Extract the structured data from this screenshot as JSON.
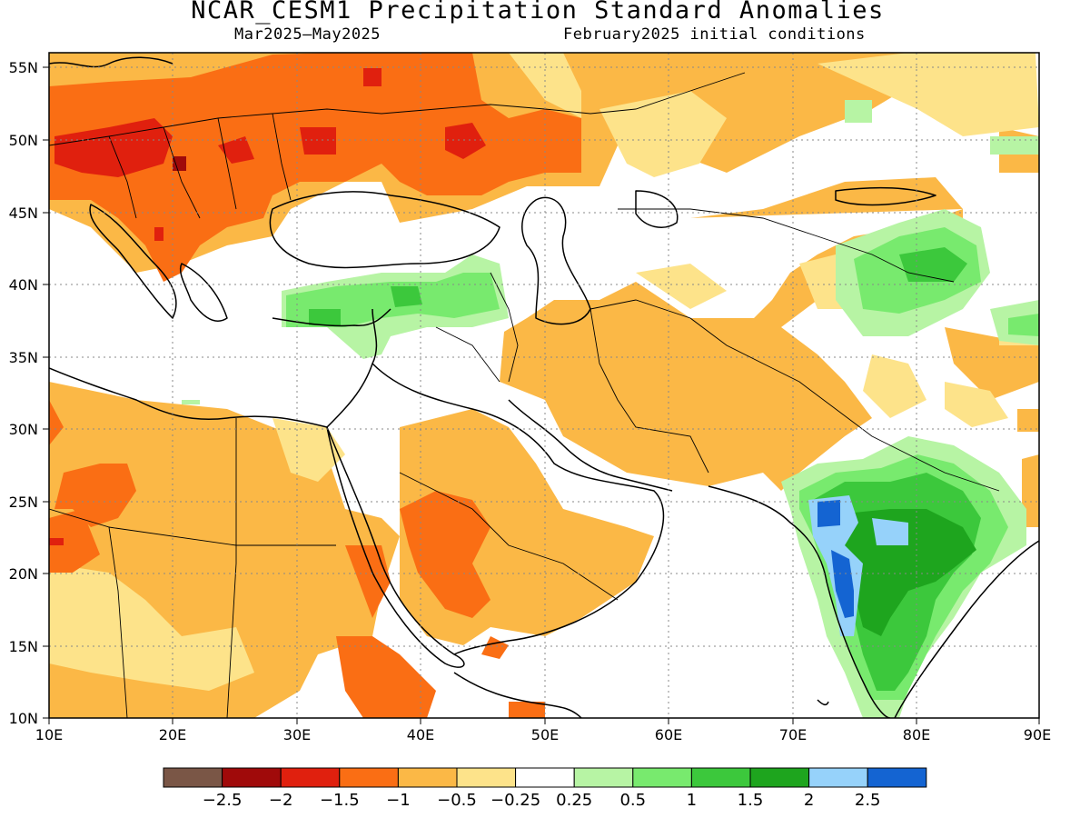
{
  "title": "NCAR_CESM1 Precipitation Standard Anomalies",
  "subtitle_left": "Mar2025–May2025",
  "subtitle_right": "February2025 initial conditions",
  "map": {
    "lon_range": [
      10,
      90
    ],
    "lat_range": [
      10,
      56
    ],
    "lon_ticks": [
      "10E",
      "20E",
      "30E",
      "40E",
      "50E",
      "60E",
      "70E",
      "80E",
      "90E"
    ],
    "lat_ticks": [
      "55N",
      "50N",
      "45N",
      "40N",
      "35N",
      "30N",
      "25N",
      "20N",
      "15N",
      "10N"
    ],
    "grid": true
  },
  "legend": {
    "colors": [
      "#7a5646",
      "#a00a0a",
      "#e0200e",
      "#fa6e14",
      "#fbb846",
      "#fde38a",
      "#ffffff",
      "#b7f4a4",
      "#78ea6e",
      "#3cc83c",
      "#1ea51e",
      "#96d2fa",
      "#1464d2"
    ],
    "labels": [
      "−2.5",
      "−2",
      "−1.5",
      "−1",
      "−0.5",
      "−0.25",
      "0.25",
      "0.5",
      "1",
      "1.5",
      "2",
      "2.5"
    ]
  }
}
